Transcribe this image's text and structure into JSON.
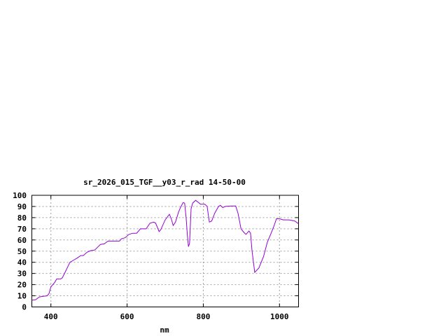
{
  "chart_data": {
    "type": "line",
    "title": "sr_2026_015_TGF__y03_r_rad 14-50-00",
    "xlabel": "nm",
    "ylabel": "",
    "xlim": [
      350,
      1050
    ],
    "ylim": [
      0,
      100
    ],
    "xticks": [
      400,
      600,
      800,
      1000
    ],
    "yticks": [
      0,
      10,
      20,
      30,
      40,
      50,
      60,
      70,
      80,
      90,
      100
    ],
    "grid": true,
    "line_color": "#9400d3",
    "series": [
      {
        "x": [
          350,
          360,
          370,
          380,
          390,
          395,
          400,
          410,
          415,
          425,
          430,
          440,
          450,
          460,
          470,
          478,
          485,
          495,
          505,
          515,
          530,
          540,
          550,
          580,
          585,
          595,
          605,
          615,
          625,
          635,
          650,
          660,
          670,
          675,
          684,
          688,
          700,
          711,
          716,
          721,
          727,
          735,
          740,
          747,
          751,
          755,
          758,
          761,
          764,
          768,
          772,
          780,
          793,
          804,
          810,
          816,
          822,
          830,
          840,
          845,
          851,
          858,
          873,
          885,
          891,
          899,
          906,
          912,
          920,
          924,
          928,
          935,
          946,
          958,
          968,
          978,
          986,
          992,
          1000,
          1010,
          1025,
          1040,
          1050
        ],
        "y": [
          6,
          6.5,
          9,
          9.5,
          10,
          12,
          18,
          22,
          25,
          25,
          26,
          33,
          40,
          42,
          44,
          46,
          46,
          49,
          50.5,
          51,
          56,
          56.5,
          59,
          59,
          61,
          62,
          65,
          66,
          66,
          70,
          70,
          75,
          76,
          75,
          67.5,
          69,
          78,
          83,
          79,
          73,
          76,
          85,
          89,
          93.5,
          93,
          80,
          65,
          54,
          57,
          88,
          93,
          95.5,
          92,
          92,
          90,
          76,
          77,
          84,
          90,
          91,
          89,
          90,
          90.5,
          90.5,
          84,
          70,
          67,
          65,
          68,
          66,
          50,
          31,
          35,
          45,
          58,
          66,
          73,
          79,
          79,
          78,
          78,
          77,
          74.5
        ]
      }
    ]
  }
}
